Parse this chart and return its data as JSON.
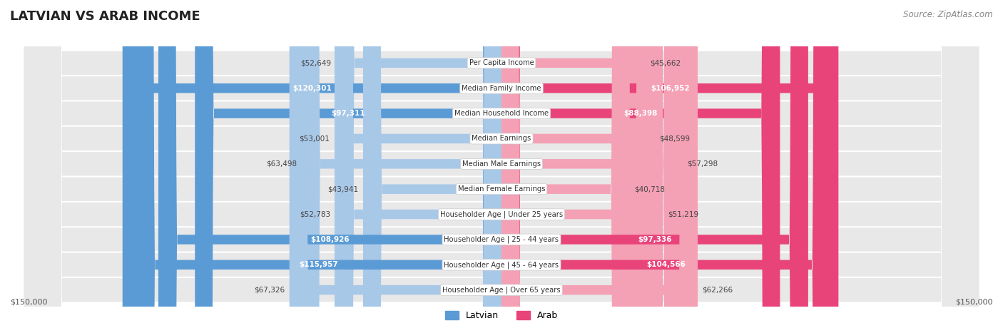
{
  "title": "LATVIAN VS ARAB INCOME",
  "source": "Source: ZipAtlas.com",
  "categories": [
    "Per Capita Income",
    "Median Family Income",
    "Median Household Income",
    "Median Earnings",
    "Median Male Earnings",
    "Median Female Earnings",
    "Householder Age | Under 25 years",
    "Householder Age | 25 - 44 years",
    "Householder Age | 45 - 64 years",
    "Householder Age | Over 65 years"
  ],
  "latvian_values": [
    52649,
    120301,
    97311,
    53001,
    63498,
    43941,
    52783,
    108926,
    115957,
    67326
  ],
  "arab_values": [
    45662,
    106952,
    88398,
    48599,
    57298,
    40718,
    51219,
    97336,
    104566,
    62266
  ],
  "latvian_color_normal": "#a8c8e8",
  "latvian_color_highlight": "#5b9bd5",
  "arab_color_normal": "#f4a0b5",
  "arab_color_highlight": "#e8447a",
  "latvian_highlight": [
    1,
    2,
    7,
    8
  ],
  "arab_highlight": [
    1,
    2,
    7,
    8
  ],
  "max_value": 150000,
  "x_label_left": "$150,000",
  "x_label_right": "$150,000",
  "background_color": "#ffffff",
  "bar_bg_color": "#e8e8e8",
  "title_fontsize": 13,
  "source_fontsize": 8.5
}
